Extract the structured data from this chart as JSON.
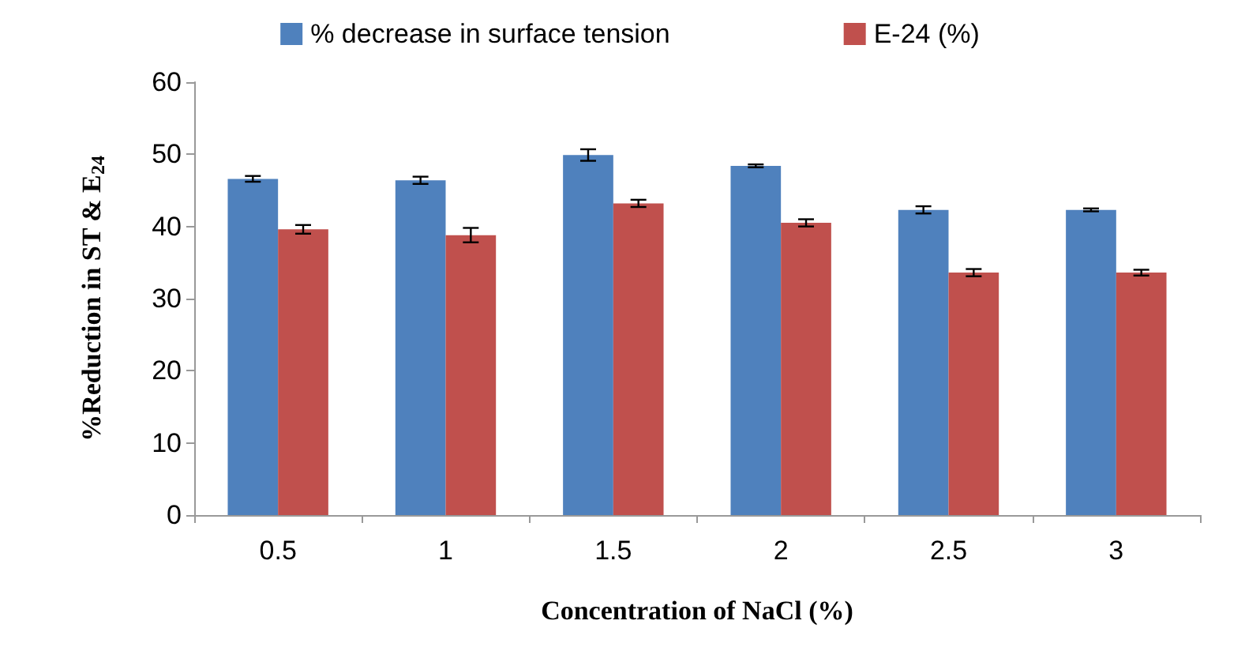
{
  "chart_data": {
    "type": "bar",
    "xlabel": "Concentration of NaCl (%)",
    "ylabel": "%Reduction in ST & E$_{24}$",
    "categories": [
      "0.5",
      "1",
      "1.5",
      "2",
      "2.5",
      "3"
    ],
    "series": [
      {
        "name": "% decrease in surface tension",
        "color": "#4f81bd",
        "values": [
          46.6,
          46.4,
          49.9,
          48.4,
          42.3,
          42.3
        ],
        "errors": [
          0.4,
          0.5,
          0.8,
          0.2,
          0.5,
          0.2
        ]
      },
      {
        "name": "E-24 (%)",
        "color": "#c0504d",
        "values": [
          39.6,
          38.8,
          43.2,
          40.5,
          33.6,
          33.6
        ],
        "errors": [
          0.6,
          1.0,
          0.5,
          0.5,
          0.5,
          0.4
        ]
      }
    ],
    "ylim": [
      0,
      60
    ],
    "yticks": [
      0,
      10,
      20,
      30,
      40,
      50,
      60
    ],
    "grid": false,
    "legend": "top"
  }
}
